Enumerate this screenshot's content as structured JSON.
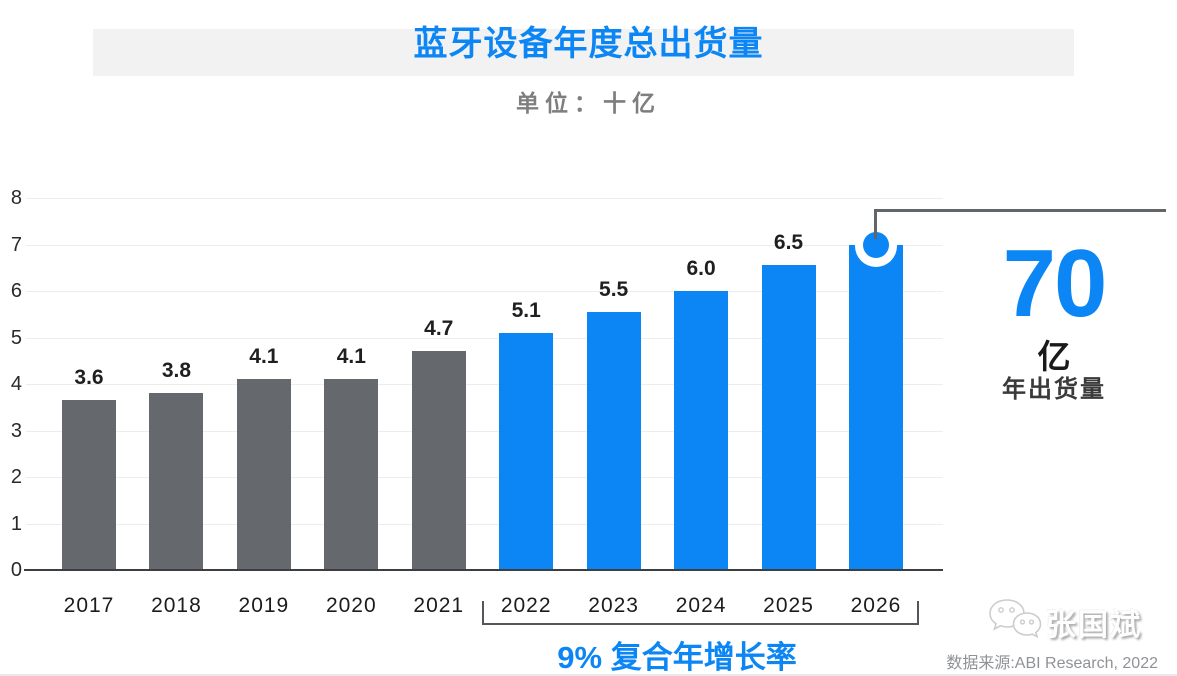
{
  "header": {
    "title": "蓝牙设备年度总出货量",
    "subtitle": "单位：十亿"
  },
  "chart_data": {
    "type": "bar",
    "title": "蓝牙设备年度总出货量",
    "unit": "单位：十亿 (billions)",
    "categories": [
      "2017",
      "2018",
      "2019",
      "2020",
      "2021",
      "2022",
      "2023",
      "2024",
      "2025",
      "2026"
    ],
    "values": [
      3.65,
      3.8,
      4.1,
      4.1,
      4.7,
      5.1,
      5.55,
      6.0,
      6.55,
      7.0
    ],
    "bar_labels": [
      "3.6",
      "3.8",
      "4.1",
      "4.1",
      "4.7",
      "5.1",
      "5.5",
      "6.0",
      "6.5",
      ""
    ],
    "segments": {
      "historical": {
        "years": [
          "2017",
          "2018",
          "2019",
          "2020",
          "2021"
        ],
        "color": "#65696d"
      },
      "forecast": {
        "years": [
          "2022",
          "2023",
          "2024",
          "2025",
          "2026"
        ],
        "color": "#0b86f4"
      }
    },
    "xlabel": "",
    "ylabel": "",
    "ylim": [
      0,
      8
    ],
    "y_ticks": [
      "0",
      "1",
      "2",
      "3",
      "4",
      "5",
      "6",
      "7",
      "8"
    ],
    "grid": true,
    "legend": "none",
    "annotation_marker_year": "2026"
  },
  "callout": {
    "value": "70",
    "unit": "亿",
    "caption": "年出货量"
  },
  "cagr": {
    "label": "9% 复合年增长率",
    "bracket_years": [
      "2022",
      "2023",
      "2024",
      "2025",
      "2026"
    ]
  },
  "footer": {
    "wechat_name": "张国斌",
    "source": "数据来源:ABI Research, 2022"
  },
  "colors": {
    "accent_blue": "#0b86f4",
    "historical_gray": "#65696d",
    "band_gray": "#f2f2f2",
    "line_gray": "#636669"
  }
}
